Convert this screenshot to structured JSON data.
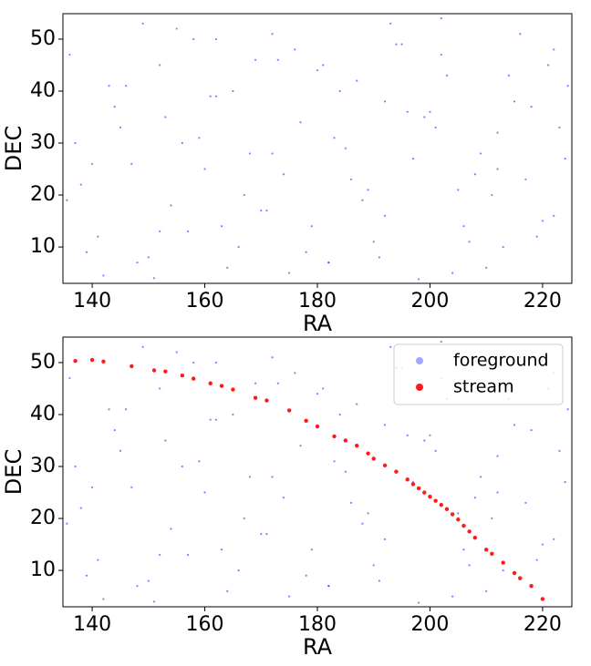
{
  "chart_data": [
    {
      "type": "scatter",
      "xlabel": "RA",
      "ylabel": "DEC",
      "xlim": [
        134.8,
        225.2
      ],
      "ylim": [
        3.0,
        54.9
      ],
      "xticks": [
        140,
        160,
        180,
        200,
        220
      ],
      "yticks": [
        10,
        20,
        30,
        40,
        50
      ],
      "series": [
        {
          "color": "#0000ff",
          "x": [
            136,
            141,
            145,
            150,
            155,
            160,
            165,
            170,
            175,
            180,
            185,
            190,
            195,
            200,
            205,
            210,
            215,
            220,
            224,
            138,
            143,
            148,
            153,
            158,
            163,
            168,
            173,
            178,
            183,
            188,
            193,
            198,
            203,
            208,
            213,
            218,
            222,
            137,
            142,
            147,
            152,
            157,
            162,
            167,
            172,
            177,
            182,
            187,
            192,
            197,
            202,
            207,
            212,
            217,
            221,
            139,
            144,
            149,
            154,
            159,
            164,
            169,
            174,
            179,
            184,
            189,
            194,
            199,
            204,
            209,
            214,
            219,
            223,
            135.5,
            146,
            156,
            166,
            176,
            186,
            196,
            206,
            216,
            140,
            151,
            161,
            171,
            181,
            191,
            201,
            211,
            224.5,
            152,
            162,
            172,
            182,
            192,
            202,
            212,
            222
          ],
          "y": [
            47,
            12,
            33,
            8,
            52,
            25,
            40,
            17,
            5,
            44,
            29,
            11,
            49,
            36,
            21,
            6,
            38,
            15,
            27,
            22,
            41,
            7,
            35,
            50,
            14,
            28,
            46,
            9,
            31,
            19,
            53,
            3.8,
            43,
            24,
            10,
            37,
            48,
            30,
            4.5,
            26,
            45,
            13,
            39,
            20,
            51,
            34,
            7,
            42,
            16,
            27,
            54,
            11,
            32,
            23,
            45,
            9,
            37,
            53,
            18,
            31,
            6,
            46,
            24,
            14,
            40,
            21,
            49,
            35,
            5,
            28,
            43,
            12,
            33,
            19,
            41,
            30,
            10,
            48,
            23,
            36,
            14,
            51,
            26,
            4,
            39,
            17,
            45,
            8,
            33,
            20,
            41,
            13,
            50,
            28,
            7,
            38,
            47,
            25,
            16
          ]
        }
      ]
    },
    {
      "type": "scatter",
      "xlabel": "RA",
      "ylabel": "DEC",
      "xlim": [
        134.8,
        225.2
      ],
      "ylim": [
        3.0,
        54.9
      ],
      "xticks": [
        140,
        160,
        180,
        200,
        220
      ],
      "yticks": [
        10,
        20,
        30,
        40,
        50
      ],
      "legend": "upper right",
      "series": [
        {
          "name": "foreground",
          "color": "#0000ff",
          "x": [
            136,
            141,
            145,
            150,
            155,
            160,
            165,
            170,
            175,
            180,
            185,
            190,
            195,
            200,
            205,
            210,
            215,
            220,
            224,
            138,
            143,
            148,
            153,
            158,
            163,
            168,
            173,
            178,
            183,
            188,
            193,
            198,
            203,
            208,
            213,
            218,
            222,
            137,
            142,
            147,
            152,
            157,
            162,
            167,
            172,
            177,
            182,
            187,
            192,
            197,
            202,
            207,
            212,
            217,
            221,
            139,
            144,
            149,
            154,
            159,
            164,
            169,
            174,
            179,
            184,
            189,
            194,
            199,
            204,
            209,
            214,
            219,
            223,
            135.5,
            146,
            156,
            166,
            176,
            186,
            196,
            206,
            216,
            140,
            151,
            161,
            171,
            181,
            191,
            201,
            211,
            224.5,
            152,
            162,
            172,
            182,
            192,
            202,
            212,
            222
          ],
          "y": [
            47,
            12,
            33,
            8,
            52,
            25,
            40,
            17,
            5,
            44,
            29,
            11,
            49,
            36,
            21,
            6,
            38,
            15,
            27,
            22,
            41,
            7,
            35,
            50,
            14,
            28,
            46,
            9,
            31,
            19,
            53,
            3.8,
            43,
            24,
            10,
            37,
            48,
            30,
            4.5,
            26,
            45,
            13,
            39,
            20,
            51,
            34,
            7,
            42,
            16,
            27,
            54,
            11,
            32,
            23,
            45,
            9,
            37,
            53,
            18,
            31,
            6,
            46,
            24,
            14,
            40,
            21,
            49,
            35,
            5,
            28,
            43,
            12,
            33,
            19,
            41,
            30,
            10,
            48,
            23,
            36,
            14,
            51,
            26,
            4,
            39,
            17,
            45,
            8,
            33,
            20,
            41,
            13,
            50,
            28,
            7,
            38,
            47,
            25,
            16
          ]
        },
        {
          "name": "stream",
          "color": "#ff0000",
          "x": [
            137,
            140,
            142,
            147,
            151,
            153,
            156,
            158,
            161,
            163,
            165,
            169,
            171,
            175,
            178,
            180,
            183,
            185,
            187,
            189,
            190,
            192,
            194,
            196,
            197,
            198,
            199,
            200,
            201,
            202,
            203,
            204,
            205,
            206,
            207,
            208,
            210,
            211,
            213,
            215,
            216,
            218,
            220
          ],
          "y": [
            50.3,
            50.5,
            50.2,
            49.3,
            48.5,
            48.3,
            47.5,
            46.9,
            46.0,
            45.5,
            44.8,
            43.2,
            42.7,
            40.8,
            38.8,
            37.7,
            35.8,
            35.0,
            34.0,
            32.5,
            31.5,
            30.2,
            29.0,
            27.5,
            26.6,
            25.8,
            25.0,
            24.2,
            23.4,
            22.6,
            21.8,
            20.8,
            19.8,
            18.6,
            17.5,
            16.3,
            14.0,
            13.2,
            11.5,
            9.5,
            8.5,
            7.0,
            4.5
          ]
        }
      ]
    }
  ]
}
